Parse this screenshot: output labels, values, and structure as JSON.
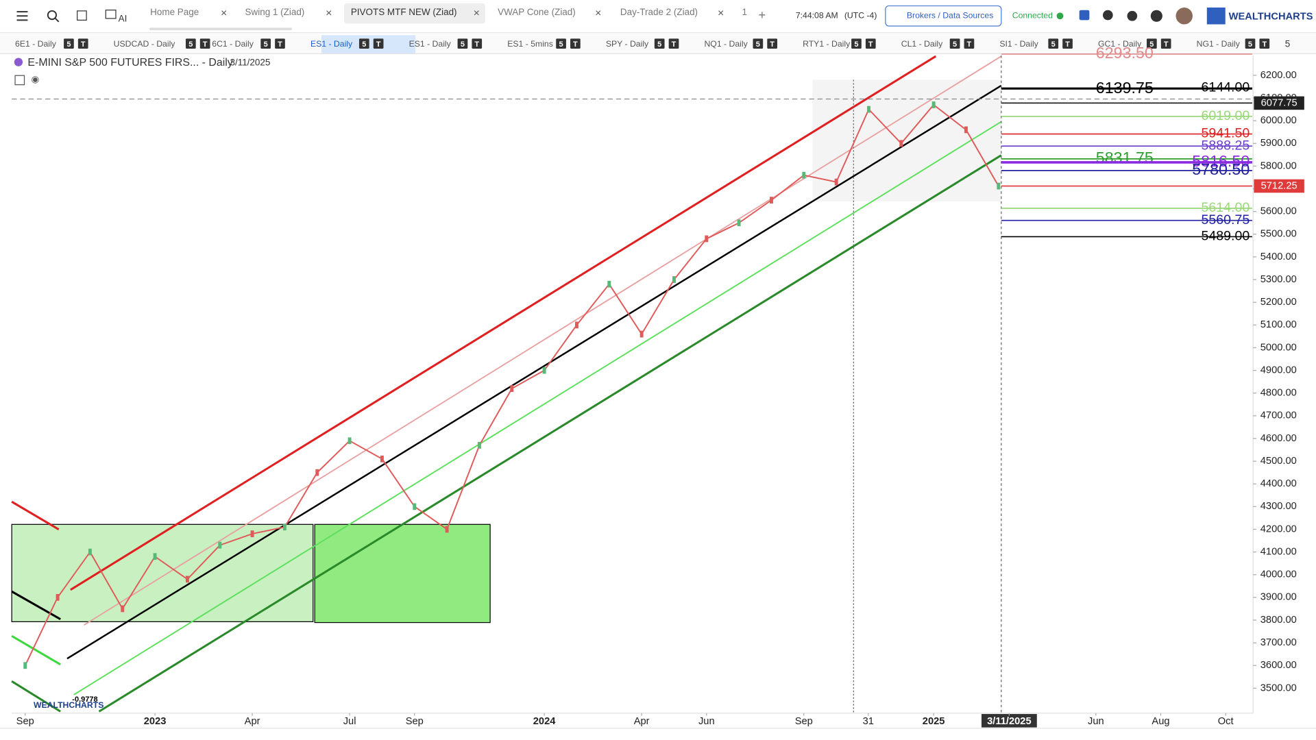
{
  "toolbar": {
    "tabs": [
      "Home Page",
      "Swing 1 (Ziad)",
      "PIVOTS MTF NEW (Ziad)",
      "VWAP Cone (Ziad)",
      "Day-Trade 2 (Ziad)",
      "1"
    ],
    "active_tab": 2,
    "time": "7:44:08 AM",
    "timezone": "(UTC -4)",
    "brokers_button": "Brokers / Data Sources",
    "status": "Connected",
    "logo": "WEALTHCHARTS",
    "ai": "AI"
  },
  "symbol_tabs": {
    "items": [
      "6E1 - Daily",
      "USDCAD - Daily",
      "6C1 - Daily",
      "ES1 - Daily",
      "ES1 - Daily",
      "ES1 - 5mins",
      "SPY - Daily",
      "NQ1 - Daily",
      "RTY1 - Daily",
      "CL1 - Daily",
      "SI1 - Daily",
      "GC1 - Daily",
      "NG1 - Daily"
    ],
    "active": 3,
    "badges": [
      "5",
      "T"
    ],
    "more": "5"
  },
  "chart": {
    "title": "E-MINI S&P 500 FUTURES FIRS... - Daily",
    "date": "3/11/2025",
    "indicator_value": "-0.9778",
    "watermark": "WEALTHCHARTS",
    "ylim": [
      3390,
      6310
    ],
    "yticks": [
      {
        "value": 3500,
        "label": "3500.00"
      },
      {
        "value": 3600,
        "label": "3600.00"
      },
      {
        "value": 3700,
        "label": "3700.00"
      },
      {
        "value": 3800,
        "label": "3800.00"
      },
      {
        "value": 3900,
        "label": "3900.00"
      },
      {
        "value": 4000,
        "label": "4000.00"
      },
      {
        "value": 4100,
        "label": "4100.00"
      },
      {
        "value": 4200,
        "label": "4200.00"
      },
      {
        "value": 4300,
        "label": "4300.00"
      },
      {
        "value": 4400,
        "label": "4400.00"
      },
      {
        "value": 4500,
        "label": "4500.00"
      },
      {
        "value": 4600,
        "label": "4600.00"
      },
      {
        "value": 4700,
        "label": "4700.00"
      },
      {
        "value": 4800,
        "label": "4800.00"
      },
      {
        "value": 4900,
        "label": "4900.00"
      },
      {
        "value": 5000,
        "label": "5000.00"
      },
      {
        "value": 5100,
        "label": "5100.00"
      },
      {
        "value": 5200,
        "label": "5200.00"
      },
      {
        "value": 5300,
        "label": "5300.00"
      },
      {
        "value": 5400,
        "label": "5400.00"
      },
      {
        "value": 5500,
        "label": "5500.00"
      },
      {
        "value": 5600,
        "label": "5600.00"
      },
      {
        "value": 5700,
        "label": "5700.00"
      },
      {
        "value": 5800,
        "label": "5800.00"
      },
      {
        "value": 5900,
        "label": "5900.00"
      },
      {
        "value": 6000,
        "label": "6000.00"
      },
      {
        "value": 6100,
        "label": "6100.00"
      },
      {
        "value": 6200,
        "label": "6200.00"
      }
    ],
    "xlim": [
      "2022-09",
      "2025-11"
    ],
    "xticks": [
      {
        "value": "2022-09",
        "label": "Sep"
      },
      {
        "value": "2023-01",
        "label": "2023"
      },
      {
        "value": "2023-04",
        "label": "Apr"
      },
      {
        "value": "2023-07",
        "label": "Jul"
      },
      {
        "value": "2023-09",
        "label": "Sep"
      },
      {
        "value": "2024-01",
        "label": "2024"
      },
      {
        "value": "2024-04",
        "label": "Apr"
      },
      {
        "value": "2024-06",
        "label": "Jun"
      },
      {
        "value": "2024-09",
        "label": "Sep"
      },
      {
        "value": "2024-10-31",
        "label": "31"
      },
      {
        "value": "2025-01",
        "label": "2025"
      },
      {
        "value": "2025-03-11",
        "label": "3/11/2025"
      },
      {
        "value": "2025-06",
        "label": "Jun"
      },
      {
        "value": "2025-08",
        "label": "Aug"
      },
      {
        "value": "2025-10",
        "label": "Oct"
      }
    ],
    "highlight_tick": 11,
    "levels": [
      {
        "value": 6293.5,
        "label": "6293.50",
        "color": "#e08a8a"
      },
      {
        "value": 6144,
        "label": "6144.00",
        "color": "#000000"
      },
      {
        "value": 6139.75,
        "label": "6139.75",
        "color": "#000000"
      },
      {
        "value": 6077.75,
        "label": "6077.75",
        "color": "#222222"
      },
      {
        "value": 6019,
        "label": "6019.00",
        "color": "#9ad87a"
      },
      {
        "value": 5941.5,
        "label": "5941.50",
        "color": "#e02020"
      },
      {
        "value": 5888.25,
        "label": "5888.25",
        "color": "#6a3fd0"
      },
      {
        "value": 5831.75,
        "label": "5831.75",
        "color": "#2e9e2e"
      },
      {
        "value": 5816.5,
        "label": "5816.50",
        "color": "#8a2be2"
      },
      {
        "value": 5780.5,
        "label": "5780.50",
        "color": "#2020a0"
      },
      {
        "value": 5712.25,
        "label": "5712.25",
        "color": "#e03b3b"
      },
      {
        "value": 5614,
        "label": "5614.00",
        "color": "#9ad87a"
      },
      {
        "value": 5560.75,
        "label": "5560.75",
        "color": "#2020a0"
      },
      {
        "value": 5489,
        "label": "5489.00",
        "color": "#000000"
      }
    ],
    "price_path": {
      "color": "#e05a5a",
      "x": [
        "2022-09",
        "2022-10",
        "2022-11",
        "2022-12",
        "2023-01",
        "2023-02",
        "2023-03",
        "2023-04",
        "2023-05",
        "2023-06",
        "2023-07",
        "2023-08",
        "2023-09",
        "2023-10",
        "2023-11",
        "2023-12",
        "2024-01",
        "2024-02",
        "2024-03",
        "2024-04",
        "2024-05",
        "2024-06",
        "2024-07",
        "2024-08",
        "2024-09",
        "2024-10",
        "2024-11",
        "2024-12",
        "2025-01",
        "2025-02",
        "2025-03"
      ],
      "values": [
        3600,
        3900,
        4100,
        3850,
        4080,
        3980,
        4130,
        4180,
        4210,
        4450,
        4590,
        4510,
        4300,
        4200,
        4570,
        4820,
        4900,
        5100,
        5280,
        5060,
        5300,
        5480,
        5550,
        5650,
        5760,
        5730,
        6050,
        5900,
        6070,
        5960,
        5712
      ]
    }
  }
}
